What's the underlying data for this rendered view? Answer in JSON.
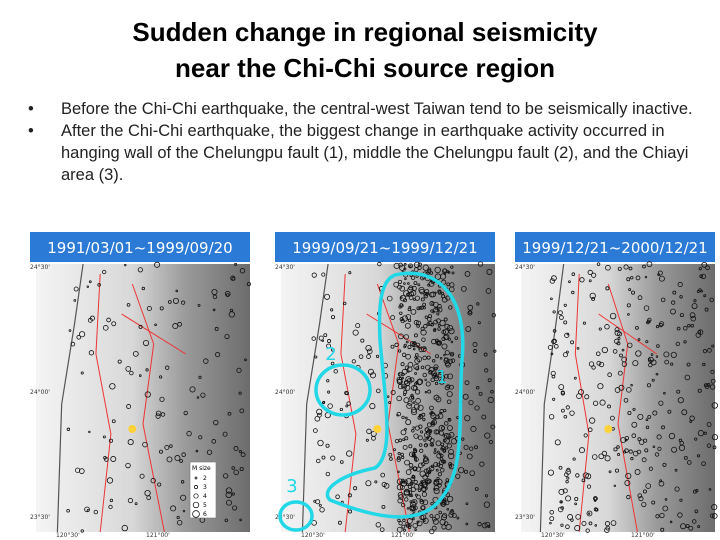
{
  "title": {
    "lines": [
      "Sudden change in regional seismicity",
      "near the Chi-Chi source region"
    ]
  },
  "bullets": [
    "Before the Chi-Chi earthquake, the central-west Taiwan tend to be seismically inactive.",
    "After the Chi-Chi earthquake, the biggest change in earthquake activity occurred in hanging wall of the Chelungpu fault (1), middle the Chelungpu fault (2), and the Chiayi area (3)."
  ],
  "panels": [
    {
      "label": "1991/03/01~1999/09/20"
    },
    {
      "label": "1999/09/21~1999/12/21"
    },
    {
      "label": "1999/12/21~2000/12/21"
    }
  ],
  "map_axes": {
    "lat": [
      "24°30'",
      "24°00'",
      "23°30'"
    ],
    "lon": [
      "120°30'",
      "121°00'"
    ]
  },
  "legend": {
    "title": "M size",
    "sizes": [
      "2",
      "3",
      "4",
      "5",
      "6"
    ]
  },
  "annotations": [
    "1",
    "2",
    "3"
  ]
}
